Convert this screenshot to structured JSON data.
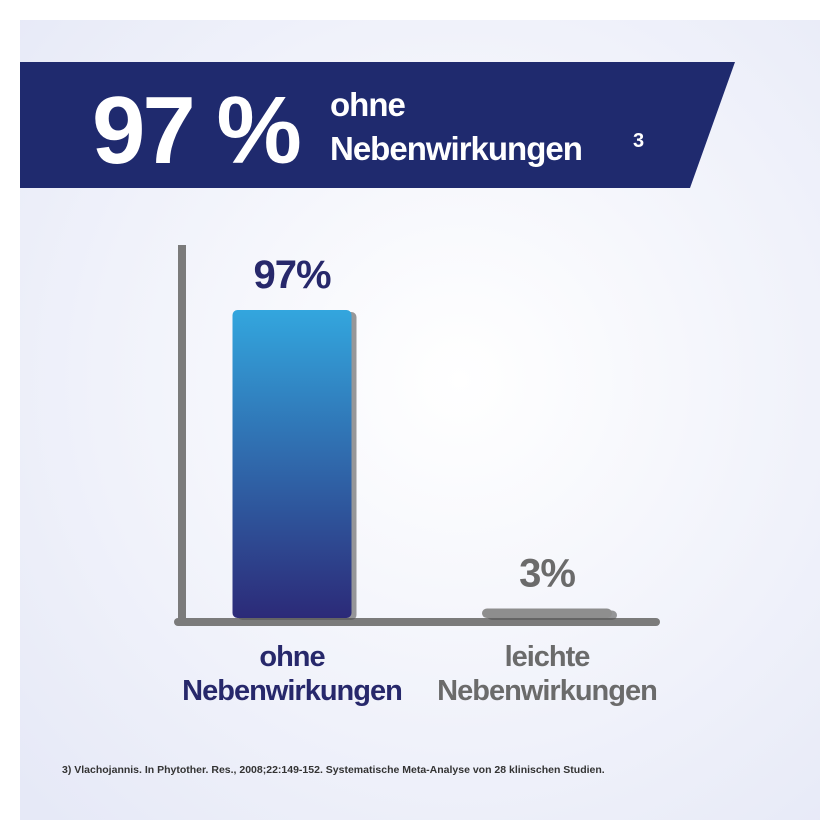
{
  "chart_data": {
    "type": "bar",
    "title": "97 %",
    "subtitle": "ohne Nebenwirkungen",
    "subtitle_note": "3",
    "categories": [
      "ohne Nebenwirkungen",
      "leichte Nebenwirkungen"
    ],
    "values": [
      97,
      3
    ],
    "value_labels": [
      "97%",
      "3%"
    ],
    "colors": [
      "#33a6de",
      "#8e8e8e"
    ],
    "label_colors": [
      "#27286b",
      "#6b6b6b"
    ],
    "footnote": "3) Vlachojannis. In Phytother. Res., 2008;22:149-152. Systematische Meta-Analyse von 28 klinischen Studien."
  }
}
